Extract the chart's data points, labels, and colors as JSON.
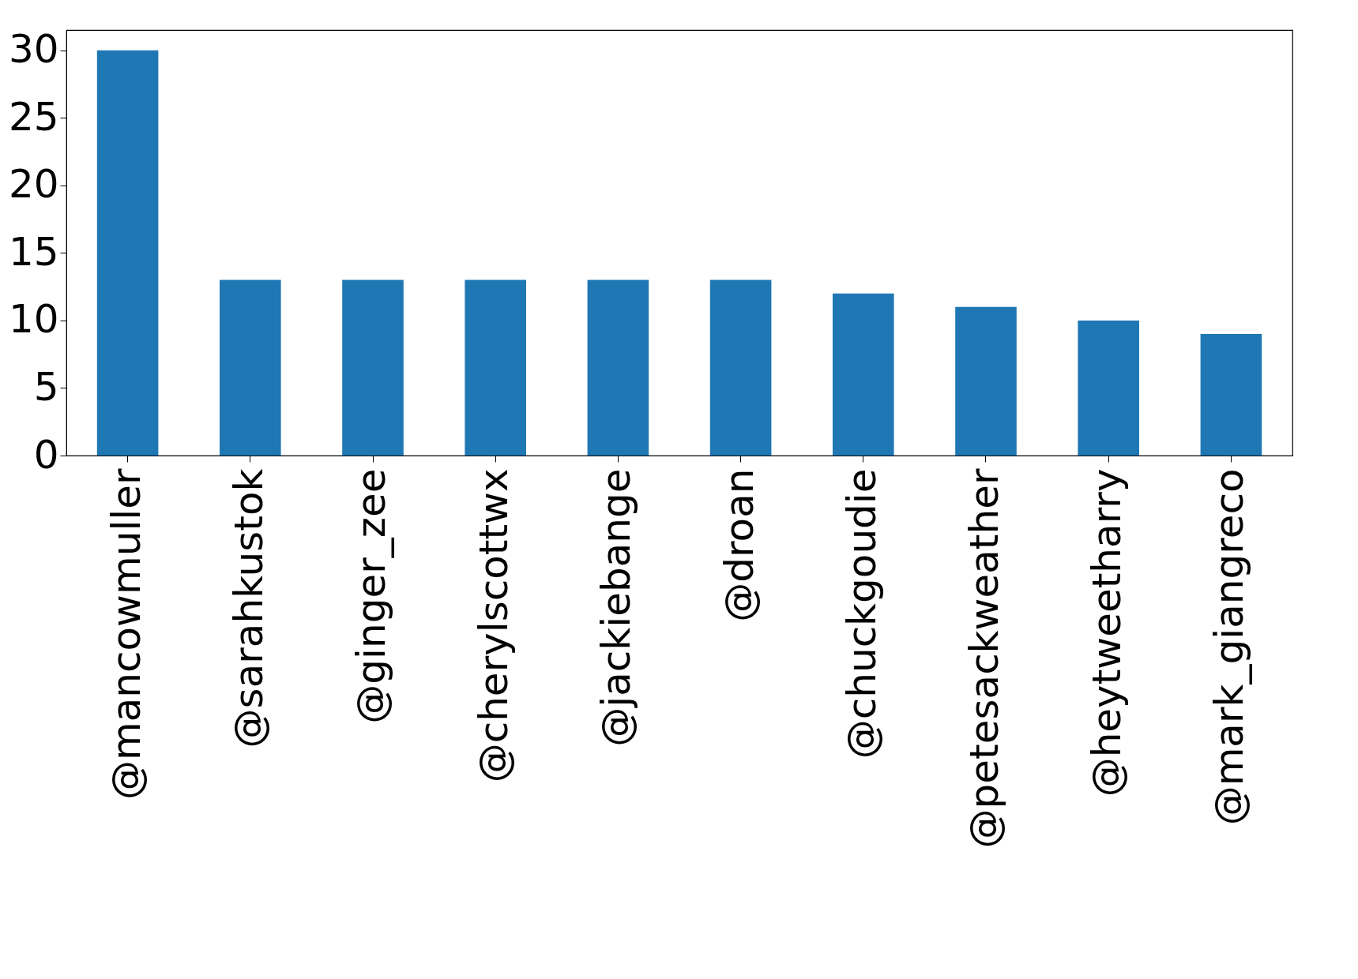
{
  "chart_data": {
    "type": "bar",
    "categories": [
      "@mancowmuller",
      "@sarahkustok",
      "@ginger_zee",
      "@cherylscottwx",
      "@jackiebange",
      "@droan",
      "@chuckgoudie",
      "@petesackweather",
      "@heytweetharry",
      "@mark_giangreco"
    ],
    "values": [
      30,
      13,
      13,
      13,
      13,
      13,
      12,
      11,
      10,
      9
    ],
    "color": "#1f77b4",
    "ylim": [
      0,
      31.5
    ],
    "yticks": [
      0,
      5,
      10,
      15,
      20,
      25,
      30
    ],
    "grid": false
  }
}
